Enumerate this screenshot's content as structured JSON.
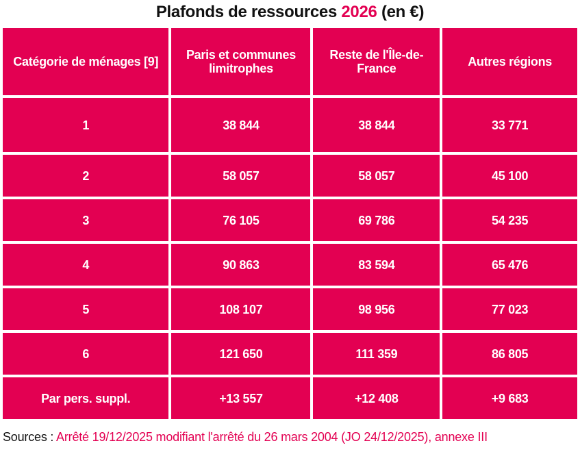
{
  "title": {
    "prefix": "Plafonds de ressources ",
    "year": "2026",
    "suffix": " (en €)"
  },
  "table": {
    "headers": [
      "Catégorie de ménages [9]",
      "Paris et communes limitrophes",
      "Reste de l'Île-de-France",
      "Autres régions"
    ],
    "rows": [
      [
        "1",
        "38 844",
        "38 844",
        "33 771"
      ],
      [
        "2",
        "58 057",
        "58 057",
        "45 100"
      ],
      [
        "3",
        "76 105",
        "69 786",
        "54 235"
      ],
      [
        "4",
        "90 863",
        "83 594",
        "65 476"
      ],
      [
        "5",
        "108 107",
        "98 956",
        "77 023"
      ],
      [
        "6",
        "121 650",
        "111 359",
        "86 805"
      ],
      [
        "Par pers. suppl.",
        "+13 557",
        "+12 408",
        "+9 683"
      ]
    ]
  },
  "sources": {
    "label": "Sources : ",
    "reference": "Arrêté 19/12/2025 modifiant l'arrêté du 26 mars 2004 (JO 24/12/2025), annexe III"
  },
  "colors": {
    "accent": "#e30052"
  }
}
